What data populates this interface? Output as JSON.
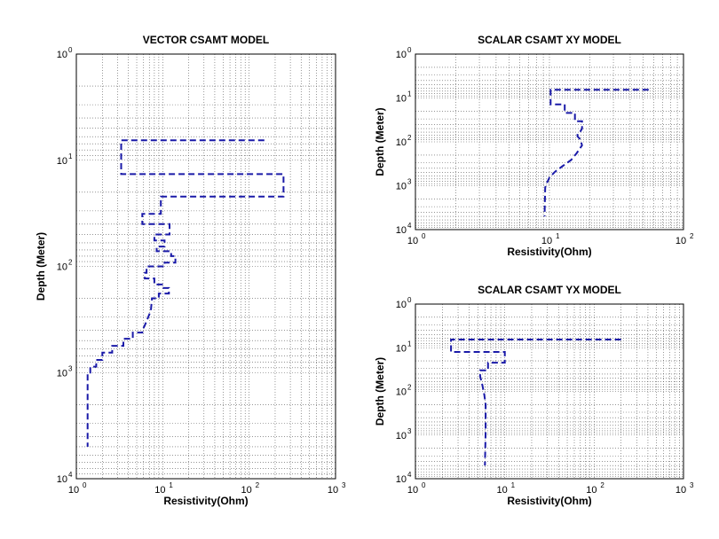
{
  "figure": {
    "background": "#ffffff"
  },
  "chart_data": [
    {
      "id": "vector",
      "type": "line",
      "title": "VECTOR CSAMT MODEL",
      "xlabel": "Resistivity(Ohm)",
      "ylabel": "Depth (Meter)",
      "xscale": "log",
      "yscale": "log",
      "xlim": [
        1,
        1000
      ],
      "ylim": [
        1,
        10000
      ],
      "y_reversed": true,
      "grid": true,
      "line_style": "dashed",
      "color": "#1a1aa8",
      "x_ticks": [
        {
          "base": "10",
          "exp": "0"
        },
        {
          "base": "10",
          "exp": "1"
        },
        {
          "base": "10",
          "exp": "2"
        },
        {
          "base": "10",
          "exp": "3"
        }
      ],
      "y_ticks": [
        {
          "base": "10",
          "exp": "0"
        },
        {
          "base": "10",
          "exp": "1"
        },
        {
          "base": "10",
          "exp": "2"
        },
        {
          "base": "10",
          "exp": "3"
        },
        {
          "base": "10",
          "exp": "4"
        }
      ],
      "series": [
        {
          "points": [
            [
              150,
              6.5
            ],
            [
              3.3,
              6.5
            ],
            [
              3.3,
              13.5
            ],
            [
              250,
              13.5
            ],
            [
              250,
              22
            ],
            [
              9.5,
              22
            ],
            [
              9.5,
              32
            ],
            [
              5.8,
              32
            ],
            [
              5.8,
              40
            ],
            [
              12,
              40
            ],
            [
              12,
              50
            ],
            [
              8,
              50
            ],
            [
              8,
              57
            ],
            [
              10.5,
              57
            ],
            [
              10.5,
              65
            ],
            [
              8.5,
              65
            ],
            [
              8.5,
              72
            ],
            [
              12.5,
              72
            ],
            [
              12.5,
              80
            ],
            [
              14,
              80
            ],
            [
              14,
              92
            ],
            [
              10.5,
              92
            ],
            [
              10.5,
              100
            ],
            [
              6.5,
              100
            ],
            [
              6.5,
              115
            ],
            [
              6.2,
              115
            ],
            [
              6.2,
              130
            ],
            [
              8,
              130
            ],
            [
              8,
              148
            ],
            [
              9.8,
              148
            ],
            [
              9.8,
              160
            ],
            [
              11.8,
              160
            ],
            [
              11.8,
              180
            ],
            [
              9,
              180
            ],
            [
              9,
              200
            ],
            [
              7.5,
              200
            ],
            [
              7.3,
              260
            ],
            [
              6.8,
              300
            ],
            [
              6.2,
              360
            ],
            [
              5.8,
              400
            ],
            [
              5.8,
              420
            ],
            [
              4.5,
              420
            ],
            [
              4.5,
              480
            ],
            [
              3.5,
              480
            ],
            [
              3.5,
              560
            ],
            [
              2.6,
              560
            ],
            [
              2.6,
              650
            ],
            [
              2.0,
              650
            ],
            [
              2.0,
              760
            ],
            [
              1.7,
              760
            ],
            [
              1.7,
              880
            ],
            [
              1.45,
              880
            ],
            [
              1.45,
              1000
            ],
            [
              1.35,
              1000
            ],
            [
              1.35,
              5000
            ]
          ]
        }
      ]
    },
    {
      "id": "xy",
      "type": "line",
      "title": "SCALAR CSAMT XY MODEL",
      "xlabel": "Resistivity(Ohm)",
      "ylabel": "Depth (Meter)",
      "xscale": "log",
      "yscale": "log",
      "xlim": [
        1,
        100
      ],
      "ylim": [
        1,
        10000
      ],
      "y_reversed": true,
      "grid": true,
      "line_style": "dashed",
      "color": "#1a1aa8",
      "x_ticks": [
        {
          "base": "10",
          "exp": "0"
        },
        {
          "base": "10",
          "exp": "1"
        },
        {
          "base": "10",
          "exp": "2"
        }
      ],
      "y_ticks": [
        {
          "base": "10",
          "exp": "0"
        },
        {
          "base": "10",
          "exp": "1"
        },
        {
          "base": "10",
          "exp": "2"
        },
        {
          "base": "10",
          "exp": "3"
        },
        {
          "base": "10",
          "exp": "4"
        }
      ],
      "series": [
        {
          "points": [
            [
              55,
              6.5
            ],
            [
              10.2,
              6.5
            ],
            [
              10.2,
              14
            ],
            [
              13,
              14
            ],
            [
              13,
              22
            ],
            [
              15.5,
              22
            ],
            [
              15.5,
              34
            ],
            [
              17.5,
              34
            ],
            [
              17.5,
              50
            ],
            [
              17,
              58
            ],
            [
              16.2,
              65
            ],
            [
              16.2,
              75
            ],
            [
              17,
              88
            ],
            [
              17.5,
              120
            ],
            [
              16,
              180
            ],
            [
              14.5,
              260
            ],
            [
              12.5,
              360
            ],
            [
              11,
              480
            ],
            [
              10,
              650
            ],
            [
              9.6,
              850
            ],
            [
              9.3,
              1100
            ],
            [
              9.2,
              5000
            ]
          ]
        }
      ]
    },
    {
      "id": "yx",
      "type": "line",
      "title": "SCALAR CSAMT YX MODEL",
      "xlabel": "Resistivity(Ohm)",
      "ylabel": "Depth (Meter)",
      "xscale": "log",
      "yscale": "log",
      "xlim": [
        1,
        1000
      ],
      "ylim": [
        1,
        10000
      ],
      "y_reversed": true,
      "grid": true,
      "line_style": "dashed",
      "color": "#1a1aa8",
      "x_ticks": [
        {
          "base": "10",
          "exp": "0"
        },
        {
          "base": "10",
          "exp": "1"
        },
        {
          "base": "10",
          "exp": "2"
        },
        {
          "base": "10",
          "exp": "3"
        }
      ],
      "y_ticks": [
        {
          "base": "10",
          "exp": "0"
        },
        {
          "base": "10",
          "exp": "1"
        },
        {
          "base": "10",
          "exp": "2"
        },
        {
          "base": "10",
          "exp": "3"
        },
        {
          "base": "10",
          "exp": "4"
        }
      ],
      "series": [
        {
          "points": [
            [
              200,
              6.5
            ],
            [
              2.5,
              6.5
            ],
            [
              2.5,
              12.5
            ],
            [
              10,
              12.5
            ],
            [
              10,
              22
            ],
            [
              6.5,
              22
            ],
            [
              6.5,
              33
            ],
            [
              5.3,
              33
            ],
            [
              5.3,
              45
            ],
            [
              5.6,
              70
            ],
            [
              5.9,
              120
            ],
            [
              6.1,
              200
            ],
            [
              6.1,
              400
            ],
            [
              6.1,
              800
            ],
            [
              6.0,
              5000
            ]
          ]
        }
      ]
    }
  ]
}
